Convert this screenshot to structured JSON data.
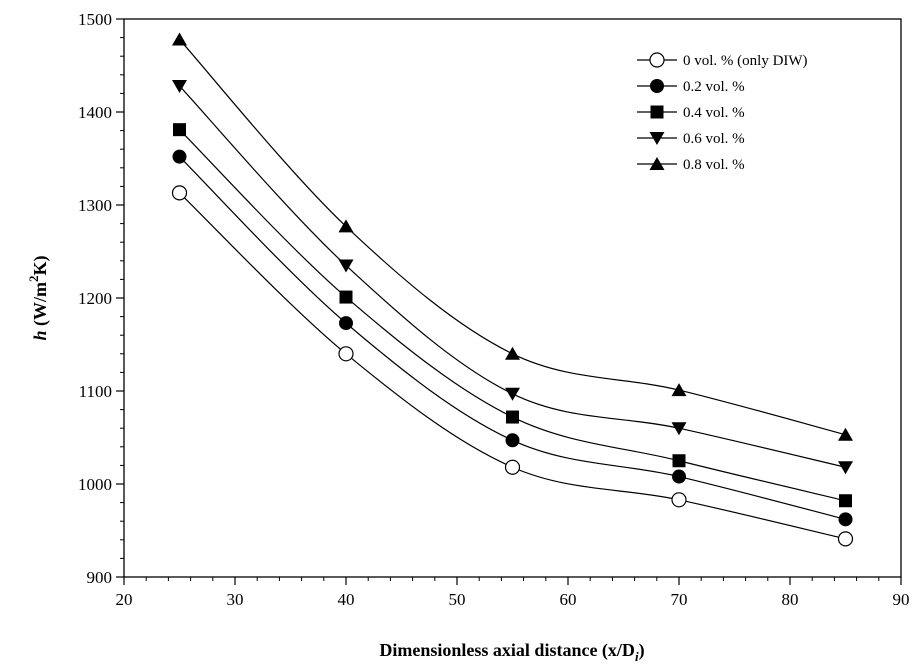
{
  "chart_data": {
    "type": "line",
    "xlabel": "Dimensionless axial distance (x/D",
    "xlabel_sub": "i",
    "xlabel_close": ")",
    "ylabel_main": "h",
    "ylabel_unit_a": " (W/m",
    "ylabel_sup": "2",
    "ylabel_unit_b": "K)",
    "xlim": [
      20,
      90
    ],
    "ylim": [
      900,
      1500
    ],
    "xticks": [
      20,
      30,
      40,
      50,
      60,
      70,
      80,
      90
    ],
    "yticks": [
      900,
      1000,
      1100,
      1200,
      1300,
      1400,
      1500
    ],
    "grid": false,
    "legend_position": "top-right",
    "x": [
      25,
      40,
      55,
      70,
      85
    ],
    "series": [
      {
        "name": "0 vol. % (only DIW)",
        "marker": "circle-open",
        "values": [
          1313,
          1140,
          1018,
          983,
          941
        ]
      },
      {
        "name": "0.2 vol. %",
        "marker": "circle-filled",
        "values": [
          1352,
          1173,
          1047,
          1008,
          962
        ]
      },
      {
        "name": "0.4 vol. %",
        "marker": "square",
        "values": [
          1381,
          1201,
          1072,
          1025,
          982
        ]
      },
      {
        "name": "0.6 vol. %",
        "marker": "triangle-down",
        "values": [
          1428,
          1235,
          1097,
          1060,
          1018
        ]
      },
      {
        "name": "0.8 vol. %",
        "marker": "triangle-up",
        "values": [
          1478,
          1277,
          1140,
          1101,
          1053
        ]
      }
    ]
  }
}
